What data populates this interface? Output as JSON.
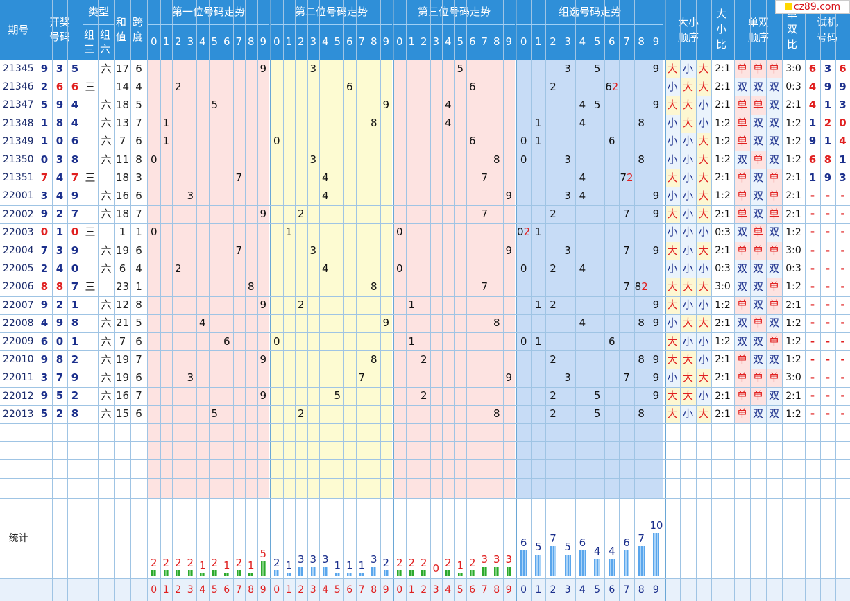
{
  "headers": {
    "issue": "期号",
    "winning": "开奖号码",
    "type": "类型",
    "type_g3": "组三",
    "type_g6": "组六",
    "sum": "和值",
    "span": "跨度",
    "pos1": "第一位号码走势",
    "pos2": "第二位号码走势",
    "pos3": "第三位号码走势",
    "group": "组选号码走势",
    "dx_order": "大小顺序",
    "dx_ratio": "大小比",
    "ds_order": "单双顺序",
    "ds_ratio": "单双比",
    "trial": "试机号码",
    "digits": [
      "0",
      "1",
      "2",
      "3",
      "4",
      "5",
      "6",
      "7",
      "8",
      "9"
    ]
  },
  "rows": [
    {
      "issue": "21345",
      "win": [
        "9",
        "3",
        "5"
      ],
      "type": "六",
      "sum": "17",
      "span": "6",
      "dx": [
        "大",
        "小",
        "大"
      ],
      "dxr": "2:1",
      "ds": [
        "单",
        "单",
        "单"
      ],
      "dsr": "3:0",
      "trial": [
        "6",
        "3",
        "6"
      ]
    },
    {
      "issue": "21346",
      "win": [
        "2",
        "6",
        "6"
      ],
      "type": "三",
      "sum": "14",
      "span": "4",
      "dx": [
        "小",
        "大",
        "大"
      ],
      "dxr": "2:1",
      "ds": [
        "双",
        "双",
        "双"
      ],
      "dsr": "0:3",
      "trial": [
        "4",
        "9",
        "9"
      ]
    },
    {
      "issue": "21347",
      "win": [
        "5",
        "9",
        "4"
      ],
      "type": "六",
      "sum": "18",
      "span": "5",
      "dx": [
        "大",
        "大",
        "小"
      ],
      "dxr": "2:1",
      "ds": [
        "单",
        "单",
        "双"
      ],
      "dsr": "2:1",
      "trial": [
        "4",
        "1",
        "3"
      ]
    },
    {
      "issue": "21348",
      "win": [
        "1",
        "8",
        "4"
      ],
      "type": "六",
      "sum": "13",
      "span": "7",
      "dx": [
        "小",
        "大",
        "小"
      ],
      "dxr": "1:2",
      "ds": [
        "单",
        "双",
        "双"
      ],
      "dsr": "1:2",
      "trial": [
        "1",
        "2",
        "0"
      ]
    },
    {
      "issue": "21349",
      "win": [
        "1",
        "0",
        "6"
      ],
      "type": "六",
      "sum": "7",
      "span": "6",
      "dx": [
        "小",
        "小",
        "大"
      ],
      "dxr": "1:2",
      "ds": [
        "单",
        "双",
        "双"
      ],
      "dsr": "1:2",
      "trial": [
        "9",
        "1",
        "4"
      ]
    },
    {
      "issue": "21350",
      "win": [
        "0",
        "3",
        "8"
      ],
      "type": "六",
      "sum": "11",
      "span": "8",
      "dx": [
        "小",
        "小",
        "大"
      ],
      "dxr": "1:2",
      "ds": [
        "双",
        "单",
        "双"
      ],
      "dsr": "1:2",
      "trial": [
        "6",
        "8",
        "1"
      ]
    },
    {
      "issue": "21351",
      "win": [
        "7",
        "4",
        "7"
      ],
      "type": "三",
      "sum": "18",
      "span": "3",
      "dx": [
        "大",
        "小",
        "大"
      ],
      "dxr": "2:1",
      "ds": [
        "单",
        "双",
        "单"
      ],
      "dsr": "2:1",
      "trial": [
        "1",
        "9",
        "3"
      ]
    },
    {
      "issue": "22001",
      "win": [
        "3",
        "4",
        "9"
      ],
      "type": "六",
      "sum": "16",
      "span": "6",
      "dx": [
        "小",
        "小",
        "大"
      ],
      "dxr": "1:2",
      "ds": [
        "单",
        "双",
        "单"
      ],
      "dsr": "2:1",
      "trial": [
        "-",
        "-",
        "-"
      ]
    },
    {
      "issue": "22002",
      "win": [
        "9",
        "2",
        "7"
      ],
      "type": "六",
      "sum": "18",
      "span": "7",
      "dx": [
        "大",
        "小",
        "大"
      ],
      "dxr": "2:1",
      "ds": [
        "单",
        "双",
        "单"
      ],
      "dsr": "2:1",
      "trial": [
        "-",
        "-",
        "-"
      ]
    },
    {
      "issue": "22003",
      "win": [
        "0",
        "1",
        "0"
      ],
      "type": "三",
      "sum": "1",
      "span": "1",
      "dx": [
        "小",
        "小",
        "小"
      ],
      "dxr": "0:3",
      "ds": [
        "双",
        "单",
        "双"
      ],
      "dsr": "1:2",
      "trial": [
        "-",
        "-",
        "-"
      ]
    },
    {
      "issue": "22004",
      "win": [
        "7",
        "3",
        "9"
      ],
      "type": "六",
      "sum": "19",
      "span": "6",
      "dx": [
        "大",
        "小",
        "大"
      ],
      "dxr": "2:1",
      "ds": [
        "单",
        "单",
        "单"
      ],
      "dsr": "3:0",
      "trial": [
        "-",
        "-",
        "-"
      ]
    },
    {
      "issue": "22005",
      "win": [
        "2",
        "4",
        "0"
      ],
      "type": "六",
      "sum": "6",
      "span": "4",
      "dx": [
        "小",
        "小",
        "小"
      ],
      "dxr": "0:3",
      "ds": [
        "双",
        "双",
        "双"
      ],
      "dsr": "0:3",
      "trial": [
        "-",
        "-",
        "-"
      ]
    },
    {
      "issue": "22006",
      "win": [
        "8",
        "8",
        "7"
      ],
      "type": "三",
      "sum": "23",
      "span": "1",
      "dx": [
        "大",
        "大",
        "大"
      ],
      "dxr": "3:0",
      "ds": [
        "双",
        "双",
        "单"
      ],
      "dsr": "1:2",
      "trial": [
        "-",
        "-",
        "-"
      ]
    },
    {
      "issue": "22007",
      "win": [
        "9",
        "2",
        "1"
      ],
      "type": "六",
      "sum": "12",
      "span": "8",
      "dx": [
        "大",
        "小",
        "小"
      ],
      "dxr": "1:2",
      "ds": [
        "单",
        "双",
        "单"
      ],
      "dsr": "2:1",
      "trial": [
        "-",
        "-",
        "-"
      ]
    },
    {
      "issue": "22008",
      "win": [
        "4",
        "9",
        "8"
      ],
      "type": "六",
      "sum": "21",
      "span": "5",
      "dx": [
        "小",
        "大",
        "大"
      ],
      "dxr": "2:1",
      "ds": [
        "双",
        "单",
        "双"
      ],
      "dsr": "1:2",
      "trial": [
        "-",
        "-",
        "-"
      ]
    },
    {
      "issue": "22009",
      "win": [
        "6",
        "0",
        "1"
      ],
      "type": "六",
      "sum": "7",
      "span": "6",
      "dx": [
        "大",
        "小",
        "小"
      ],
      "dxr": "1:2",
      "ds": [
        "双",
        "双",
        "单"
      ],
      "dsr": "1:2",
      "trial": [
        "-",
        "-",
        "-"
      ]
    },
    {
      "issue": "22010",
      "win": [
        "9",
        "8",
        "2"
      ],
      "type": "六",
      "sum": "19",
      "span": "7",
      "dx": [
        "大",
        "大",
        "小"
      ],
      "dxr": "2:1",
      "ds": [
        "单",
        "双",
        "双"
      ],
      "dsr": "1:2",
      "trial": [
        "-",
        "-",
        "-"
      ]
    },
    {
      "issue": "22011",
      "win": [
        "3",
        "7",
        "9"
      ],
      "type": "六",
      "sum": "19",
      "span": "6",
      "dx": [
        "小",
        "大",
        "大"
      ],
      "dxr": "2:1",
      "ds": [
        "单",
        "单",
        "单"
      ],
      "dsr": "3:0",
      "trial": [
        "-",
        "-",
        "-"
      ]
    },
    {
      "issue": "22012",
      "win": [
        "9",
        "5",
        "2"
      ],
      "type": "六",
      "sum": "16",
      "span": "7",
      "dx": [
        "大",
        "大",
        "小"
      ],
      "dxr": "2:1",
      "ds": [
        "单",
        "单",
        "双"
      ],
      "dsr": "2:1",
      "trial": [
        "-",
        "-",
        "-"
      ]
    },
    {
      "issue": "22013",
      "win": [
        "5",
        "2",
        "8"
      ],
      "type": "六",
      "sum": "15",
      "span": "6",
      "dx": [
        "大",
        "小",
        "大"
      ],
      "dxr": "2:1",
      "ds": [
        "单",
        "双",
        "双"
      ],
      "dsr": "1:2",
      "trial": [
        "-",
        "-",
        "-"
      ]
    }
  ],
  "group_marks": [
    [
      {
        "c": 3,
        "t": "3"
      },
      {
        "c": 5,
        "t": "5"
      },
      {
        "c": 9,
        "t": "9"
      }
    ],
    [
      {
        "c": 2,
        "t": "2"
      },
      {
        "c": 6,
        "t": "6",
        "extra": "2"
      }
    ],
    [
      {
        "c": 4,
        "t": "4"
      },
      {
        "c": 5,
        "t": "5"
      },
      {
        "c": 9,
        "t": "9"
      }
    ],
    [
      {
        "c": 1,
        "t": "1"
      },
      {
        "c": 4,
        "t": "4"
      },
      {
        "c": 8,
        "t": "8"
      }
    ],
    [
      {
        "c": 0,
        "t": "0"
      },
      {
        "c": 1,
        "t": "1"
      },
      {
        "c": 6,
        "t": "6"
      }
    ],
    [
      {
        "c": 0,
        "t": "0"
      },
      {
        "c": 3,
        "t": "3"
      },
      {
        "c": 8,
        "t": "8"
      }
    ],
    [
      {
        "c": 4,
        "t": "4"
      },
      {
        "c": 7,
        "t": "7",
        "extra": "2"
      }
    ],
    [
      {
        "c": 3,
        "t": "3"
      },
      {
        "c": 4,
        "t": "4"
      },
      {
        "c": 9,
        "t": "9"
      }
    ],
    [
      {
        "c": 2,
        "t": "2"
      },
      {
        "c": 7,
        "t": "7"
      },
      {
        "c": 9,
        "t": "9"
      }
    ],
    [
      {
        "c": 0,
        "t": "0",
        "extra": "2"
      },
      {
        "c": 1,
        "t": "1"
      }
    ],
    [
      {
        "c": 3,
        "t": "3"
      },
      {
        "c": 7,
        "t": "7"
      },
      {
        "c": 9,
        "t": "9"
      }
    ],
    [
      {
        "c": 0,
        "t": "0"
      },
      {
        "c": 2,
        "t": "2"
      },
      {
        "c": 4,
        "t": "4"
      }
    ],
    [
      {
        "c": 7,
        "t": "7"
      },
      {
        "c": 8,
        "t": "8",
        "extra": "2"
      }
    ],
    [
      {
        "c": 1,
        "t": "1"
      },
      {
        "c": 2,
        "t": "2"
      },
      {
        "c": 9,
        "t": "9"
      }
    ],
    [
      {
        "c": 4,
        "t": "4"
      },
      {
        "c": 8,
        "t": "8"
      },
      {
        "c": 9,
        "t": "9"
      }
    ],
    [
      {
        "c": 0,
        "t": "0"
      },
      {
        "c": 1,
        "t": "1"
      },
      {
        "c": 6,
        "t": "6"
      }
    ],
    [
      {
        "c": 2,
        "t": "2"
      },
      {
        "c": 8,
        "t": "8"
      },
      {
        "c": 9,
        "t": "9"
      }
    ],
    [
      {
        "c": 3,
        "t": "3"
      },
      {
        "c": 7,
        "t": "7"
      },
      {
        "c": 9,
        "t": "9"
      }
    ],
    [
      {
        "c": 2,
        "t": "2"
      },
      {
        "c": 5,
        "t": "5"
      },
      {
        "c": 9,
        "t": "9"
      }
    ],
    [
      {
        "c": 2,
        "t": "2"
      },
      {
        "c": 5,
        "t": "5"
      },
      {
        "c": 8,
        "t": "8"
      }
    ]
  ],
  "stats": {
    "label": "统计",
    "pos1": [
      2,
      2,
      2,
      2,
      1,
      2,
      1,
      2,
      1,
      5
    ],
    "pos2": [
      2,
      1,
      3,
      3,
      3,
      1,
      1,
      1,
      3,
      2
    ],
    "pos3": [
      2,
      2,
      2,
      0,
      2,
      1,
      2,
      3,
      3,
      3
    ],
    "group": [
      6,
      5,
      7,
      5,
      6,
      4,
      4,
      6,
      7,
      10
    ]
  },
  "logo": "cz89.com",
  "colors": {
    "header_bg": "#2f8fd8",
    "pos1_bg": "#fde3e1",
    "pos2_bg": "#fdfbd2",
    "pos3_bg": "#fde3e1",
    "group_bg": "#c7dcf6",
    "winning_text": "#1b2f8c",
    "red": "#e02020",
    "blue": "#1b2f8c",
    "green_bar": "#2ea82e",
    "blue_bar": "#6ab0f0"
  }
}
